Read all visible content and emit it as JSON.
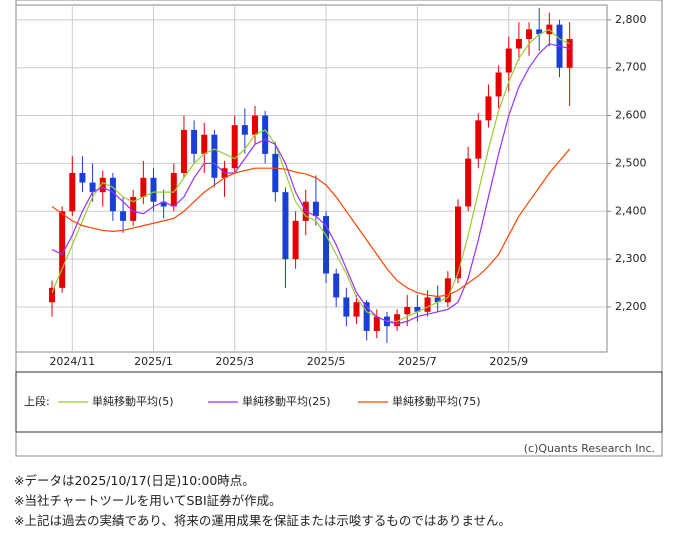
{
  "chart_data": {
    "type": "candlestick",
    "categories": [
      null,
      null,
      "2024/11",
      null,
      null,
      null,
      null,
      null,
      null,
      null,
      "2025/1",
      null,
      null,
      null,
      null,
      null,
      null,
      null,
      "2025/3",
      null,
      null,
      null,
      null,
      null,
      null,
      null,
      null,
      "2025/5",
      null,
      null,
      null,
      null,
      null,
      null,
      null,
      null,
      "2025/7",
      null,
      null,
      null,
      null,
      null,
      null,
      null,
      null,
      "2025/9",
      null,
      null,
      null,
      null,
      null,
      null
    ],
    "open": [
      2210,
      2240,
      2400,
      2480,
      2460,
      2440,
      2470,
      2400,
      2380,
      2430,
      2470,
      2420,
      2410,
      2480,
      2570,
      2520,
      2560,
      2470,
      2490,
      2580,
      2560,
      2600,
      2520,
      2440,
      2300,
      2380,
      2420,
      2390,
      2270,
      2220,
      2180,
      2210,
      2150,
      2180,
      2160,
      2185,
      2200,
      2190,
      2220,
      2210,
      2260,
      2410,
      2510,
      2590,
      2640,
      2690,
      2740,
      2760,
      2780,
      2770,
      2790,
      2700
    ],
    "high": [
      2255,
      2410,
      2515,
      2515,
      2500,
      2485,
      2480,
      2430,
      2445,
      2505,
      2490,
      2445,
      2500,
      2600,
      2590,
      2585,
      2570,
      2505,
      2600,
      2615,
      2620,
      2610,
      2545,
      2450,
      2400,
      2445,
      2475,
      2400,
      2280,
      2240,
      2225,
      2215,
      2195,
      2190,
      2195,
      2225,
      2225,
      2235,
      2245,
      2275,
      2425,
      2535,
      2605,
      2665,
      2705,
      2765,
      2795,
      2795,
      2825,
      2815,
      2800,
      2795
    ],
    "low": [
      2180,
      2230,
      2390,
      2440,
      2420,
      2410,
      2380,
      2355,
      2370,
      2415,
      2400,
      2385,
      2400,
      2470,
      2500,
      2480,
      2450,
      2430,
      2480,
      2520,
      2540,
      2500,
      2420,
      2240,
      2280,
      2350,
      2370,
      2250,
      2200,
      2160,
      2165,
      2130,
      2135,
      2125,
      2150,
      2160,
      2170,
      2180,
      2190,
      2200,
      2250,
      2400,
      2490,
      2575,
      2615,
      2650,
      2715,
      2725,
      2735,
      2745,
      2680,
      2620
    ],
    "close": [
      2240,
      2400,
      2480,
      2460,
      2440,
      2470,
      2400,
      2380,
      2430,
      2470,
      2420,
      2410,
      2480,
      2570,
      2520,
      2560,
      2470,
      2490,
      2580,
      2560,
      2600,
      2520,
      2440,
      2300,
      2380,
      2420,
      2390,
      2270,
      2220,
      2180,
      2210,
      2150,
      2180,
      2160,
      2185,
      2200,
      2190,
      2220,
      2210,
      2260,
      2410,
      2510,
      2590,
      2640,
      2690,
      2740,
      2760,
      2780,
      2770,
      2790,
      2700,
      2760
    ],
    "up_color": "#e60000",
    "down_color": "#1a3fd6",
    "series": [
      {
        "name": "単純移動平均(5)",
        "color": "#9acd32",
        "values": [
          2230,
          2280,
          2330,
          2380,
          2430,
          2460,
          2450,
          2430,
          2420,
          2430,
          2440,
          2440,
          2440,
          2470,
          2500,
          2520,
          2530,
          2520,
          2510,
          2530,
          2560,
          2570,
          2540,
          2480,
          2420,
          2390,
          2380,
          2350,
          2310,
          2270,
          2220,
          2190,
          2180,
          2170,
          2170,
          2180,
          2190,
          2200,
          2210,
          2220,
          2270,
          2350,
          2440,
          2530,
          2610,
          2670,
          2720,
          2750,
          2770,
          2780,
          2760,
          2750
        ]
      },
      {
        "name": "単純移動平均(25)",
        "color": "#9b30ff",
        "values": [
          2320,
          2310,
          2350,
          2400,
          2440,
          2450,
          2440,
          2420,
          2400,
          2395,
          2410,
          2420,
          2410,
          2430,
          2470,
          2500,
          2500,
          2480,
          2480,
          2510,
          2540,
          2550,
          2540,
          2500,
          2440,
          2400,
          2390,
          2370,
          2330,
          2280,
          2230,
          2200,
          2180,
          2170,
          2165,
          2170,
          2180,
          2185,
          2190,
          2195,
          2210,
          2260,
          2340,
          2430,
          2520,
          2600,
          2660,
          2700,
          2730,
          2750,
          2745,
          2740
        ]
      },
      {
        "name": "単純移動平均(75)",
        "color": "#ff4500",
        "values": [
          2410,
          2395,
          2380,
          2370,
          2365,
          2360,
          2358,
          2360,
          2365,
          2370,
          2375,
          2380,
          2385,
          2400,
          2420,
          2440,
          2455,
          2470,
          2480,
          2485,
          2490,
          2490,
          2490,
          2488,
          2482,
          2478,
          2470,
          2455,
          2430,
          2400,
          2370,
          2340,
          2310,
          2280,
          2255,
          2240,
          2230,
          2225,
          2222,
          2225,
          2235,
          2250,
          2265,
          2285,
          2310,
          2350,
          2390,
          2420,
          2450,
          2480,
          2505,
          2530
        ]
      }
    ],
    "ylim": [
      2106,
      2831
    ],
    "yticks": [
      {
        "value": 2200,
        "label": "2,200"
      },
      {
        "value": 2300,
        "label": "2,300"
      },
      {
        "value": 2400,
        "label": "2,400"
      },
      {
        "value": 2500,
        "label": "2,500"
      },
      {
        "value": 2600,
        "label": "2,600"
      },
      {
        "value": 2700,
        "label": "2,700"
      },
      {
        "value": 2800,
        "label": "2,800"
      }
    ],
    "grid": true,
    "legend_prefix": "上段:",
    "credit": "(c)Quants Research Inc."
  },
  "notes": [
    "※データは2025/10/17(日足)10:00時点。",
    "※当社チャートツールを用いてSBI証券が作成。",
    "※上記は過去の実績であり、将来の運用成果を保証または示唆するものではありません。"
  ]
}
